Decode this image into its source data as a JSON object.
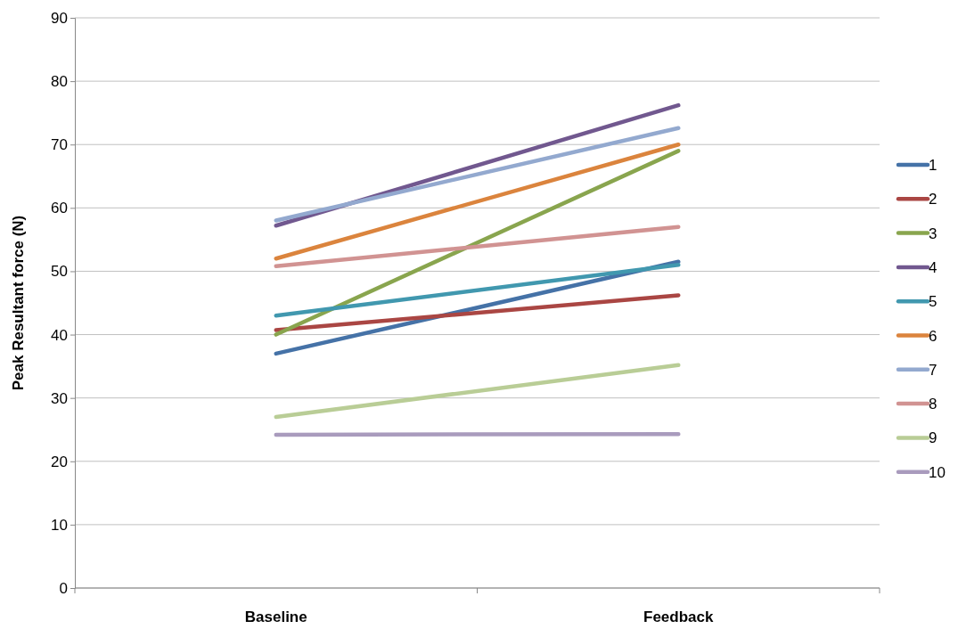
{
  "chart_data": {
    "type": "line",
    "ylabel": "Peak Resultant force (N)",
    "categories": [
      "Baseline",
      "Feedback"
    ],
    "ylim": [
      0,
      90
    ],
    "yticks": [
      0,
      10,
      20,
      30,
      40,
      50,
      60,
      70,
      80,
      90
    ],
    "grid": "y",
    "legend": "right",
    "marker": "none",
    "line_style": "solid",
    "series": [
      {
        "name": "1",
        "color": "#4572a7",
        "values": [
          37,
          51.5
        ]
      },
      {
        "name": "2",
        "color": "#aa4643",
        "values": [
          40.7,
          46.2
        ]
      },
      {
        "name": "3",
        "color": "#89a54e",
        "values": [
          40,
          69
        ]
      },
      {
        "name": "4",
        "color": "#71588f",
        "values": [
          57.2,
          76.2
        ]
      },
      {
        "name": "5",
        "color": "#4198af",
        "values": [
          43,
          51
        ]
      },
      {
        "name": "6",
        "color": "#db843d",
        "values": [
          52,
          70
        ]
      },
      {
        "name": "7",
        "color": "#93a9cf",
        "values": [
          58,
          72.6
        ]
      },
      {
        "name": "8",
        "color": "#d19392",
        "values": [
          50.8,
          57
        ]
      },
      {
        "name": "9",
        "color": "#b9cd96",
        "values": [
          27,
          35.2
        ]
      },
      {
        "name": "10",
        "color": "#a99bbd",
        "values": [
          24.2,
          24.3
        ]
      }
    ]
  }
}
